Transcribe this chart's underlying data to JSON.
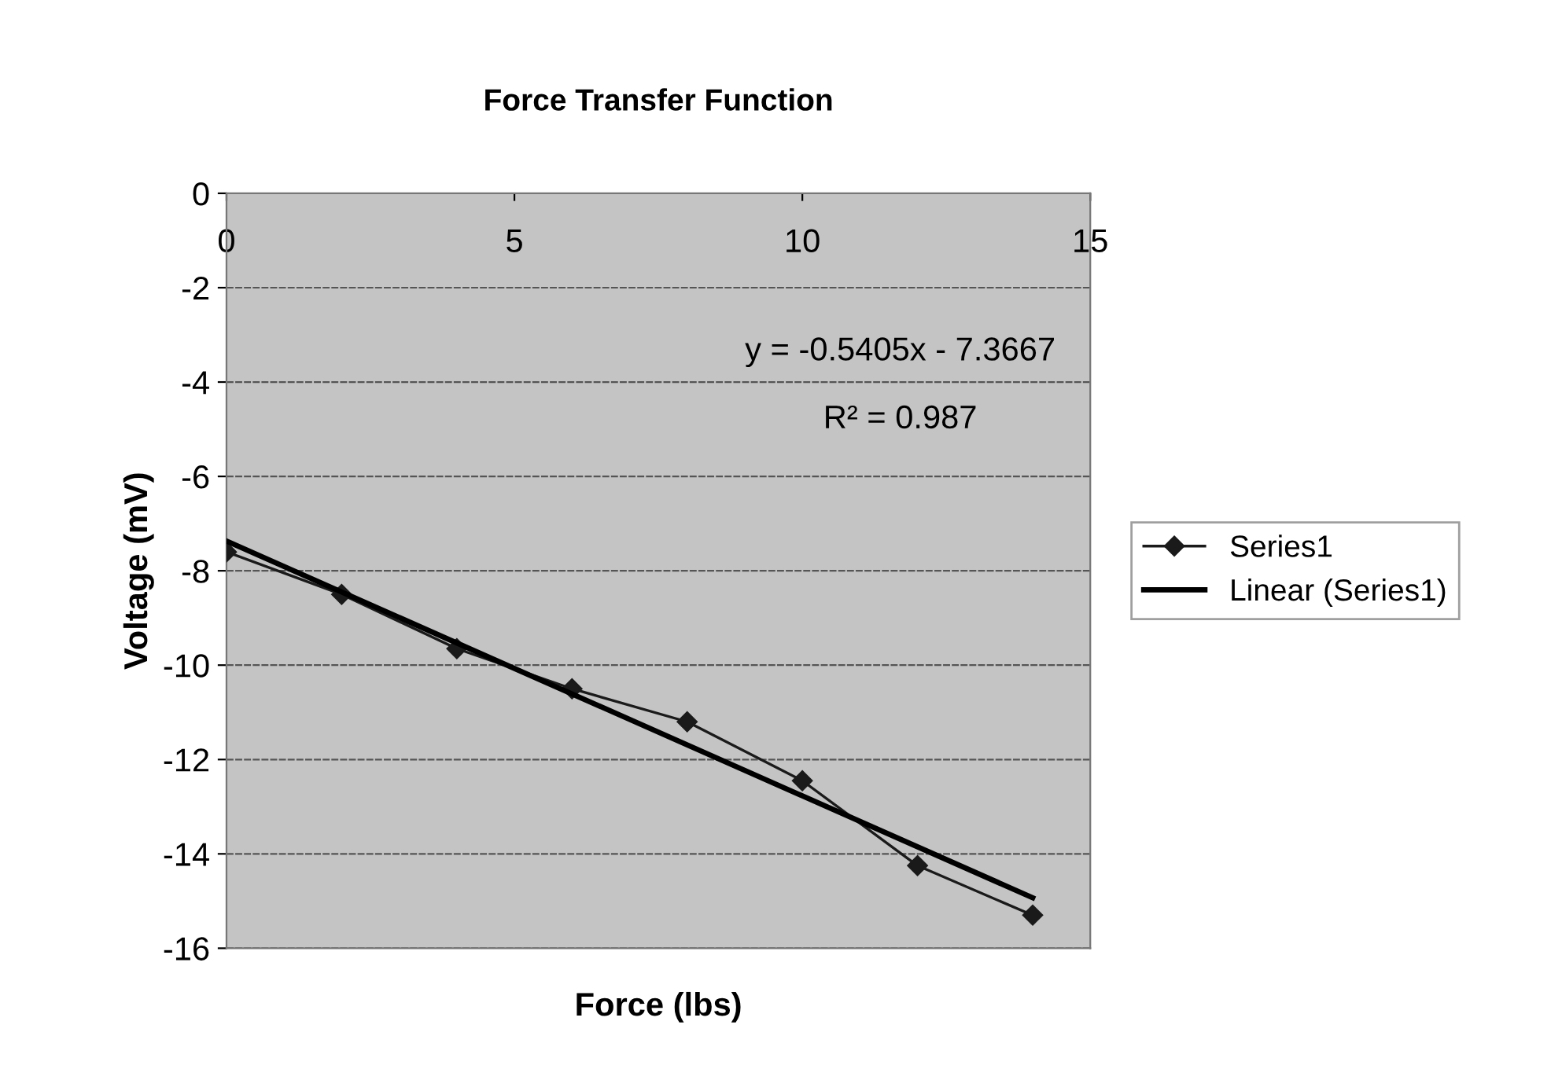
{
  "chart_data": {
    "type": "line",
    "title": "Force Transfer Function",
    "xlabel": "Force (lbs)",
    "ylabel": "Voltage (mV)",
    "series": [
      {
        "name": "Series1",
        "color": "#1a1a1a",
        "marker": "diamond",
        "x": [
          0,
          2,
          4,
          6,
          8,
          10,
          12,
          14
        ],
        "values": [
          -7.6,
          -8.5,
          -9.65,
          -10.5,
          -11.2,
          -12.45,
          -14.25,
          -15.3
        ]
      },
      {
        "name": "Linear (Series1)",
        "color": "#000000",
        "marker": "none",
        "x": [
          0,
          14
        ],
        "values": [
          -7.37,
          -14.93
        ]
      }
    ],
    "annotations": [
      "y = -0.5405x - 7.3667",
      "R² = 0.987"
    ],
    "xlim": [
      0,
      15
    ],
    "xticks": [
      0,
      5,
      10,
      15
    ],
    "ylim": [
      -16,
      0
    ],
    "yticks": [
      0,
      -2,
      -4,
      -6,
      -8,
      -10,
      -12,
      -14,
      -16
    ],
    "grid": "y",
    "legend": "right"
  }
}
